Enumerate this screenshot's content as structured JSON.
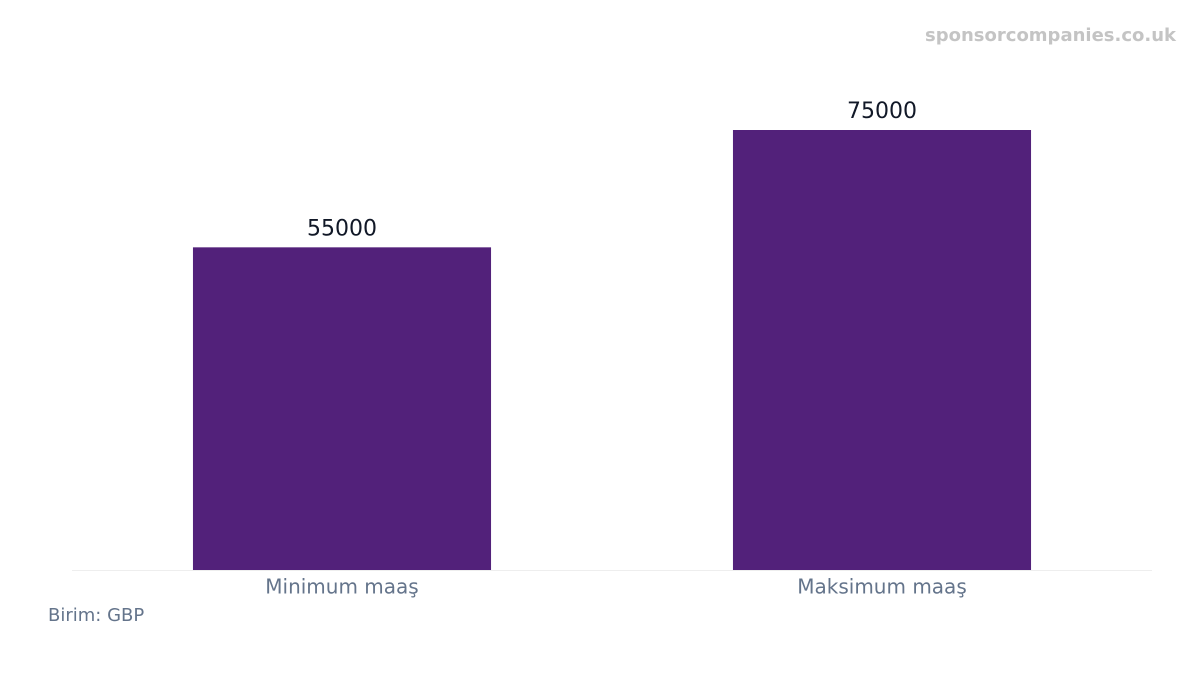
{
  "chart_data": {
    "type": "bar",
    "watermark": "sponsorcompanies.co.uk",
    "note": "Birim: GBP",
    "categories": [
      "Minimum maaş",
      "Maksimum maaş"
    ],
    "values": [
      55000,
      75000
    ],
    "color": "#52217a"
  }
}
